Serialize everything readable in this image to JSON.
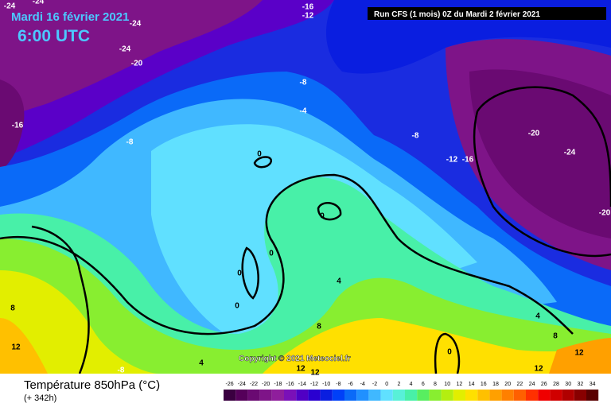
{
  "header": {
    "date": "Mardi 16 février 2021",
    "time": "6:00 UTC",
    "run": "Run CFS (1 mois) 0Z du Mardi 2 février 2021"
  },
  "map": {
    "copyright": "Copyright © 2021 Meteociel.fr",
    "contour_labels": [
      -24,
      -24,
      -24,
      -24,
      -20,
      -16,
      -12,
      -8,
      -4,
      -16,
      -8,
      0,
      -8,
      -12,
      -16,
      -20,
      -24,
      -20,
      0,
      0,
      0,
      0,
      4,
      8,
      8,
      4,
      8,
      12,
      12,
      0,
      -8,
      4,
      12,
      12,
      12
    ]
  },
  "legend": {
    "title": "Température 850hPa (°C)",
    "lead": "(+ 342h)",
    "values": [
      -26,
      -24,
      -22,
      -20,
      -18,
      -16,
      -14,
      -12,
      -10,
      -8,
      -6,
      -4,
      -2,
      0,
      2,
      4,
      6,
      8,
      10,
      12,
      14,
      16,
      18,
      20,
      22,
      24,
      26,
      28,
      30,
      32,
      34
    ],
    "colors": [
      "#3a0040",
      "#55005a",
      "#6a0a72",
      "#7e1488",
      "#8f1e9c",
      "#7a10b8",
      "#5000c4",
      "#2a00d0",
      "#0a1ee0",
      "#0040f8",
      "#0a6af8",
      "#2090ff",
      "#40b8ff",
      "#60e0ff",
      "#58f0d8",
      "#48f0a8",
      "#58ee60",
      "#88ee30",
      "#b4ee10",
      "#e2ee00",
      "#ffe000",
      "#ffc000",
      "#ffa000",
      "#ff8000",
      "#ff6000",
      "#ff3000",
      "#f00000",
      "#d00000",
      "#b00000",
      "#880000",
      "#5a0000"
    ]
  }
}
